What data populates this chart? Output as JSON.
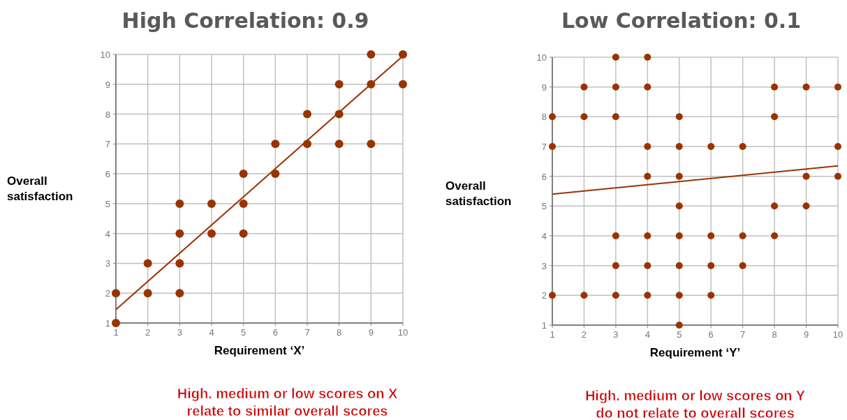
{
  "chart_data": [
    {
      "type": "scatter",
      "title": "High Correlation: 0.9",
      "xlabel": "Requirement ‘X’",
      "ylabel": "Overall satisfaction",
      "annotations": [
        "High. medium or low scores on X relate to similar overall scores"
      ],
      "xlim": [
        1,
        10
      ],
      "ylim": [
        1,
        10
      ],
      "xticks": [
        1,
        2,
        3,
        4,
        5,
        6,
        7,
        8,
        9,
        10
      ],
      "yticks": [
        1,
        2,
        3,
        4,
        5,
        6,
        7,
        8,
        9,
        10
      ],
      "grid": true,
      "series": [
        {
          "marker": "circle",
          "color": "#993300",
          "x": [
            1,
            1,
            2,
            2,
            3,
            3,
            3,
            3,
            4,
            4,
            5,
            5,
            5,
            6,
            6,
            7,
            7,
            8,
            8,
            8,
            9,
            9,
            9,
            10,
            10
          ],
          "values": [
            1,
            2,
            2,
            3,
            2,
            3,
            4,
            5,
            4,
            5,
            4,
            5,
            6,
            6,
            7,
            7,
            8,
            7,
            8,
            9,
            7,
            9,
            10,
            9,
            10
          ]
        },
        {
          "type": "line",
          "marker": "none",
          "color": "#993300",
          "x": [
            1,
            10
          ],
          "values": [
            1.45,
            9.95
          ]
        }
      ]
    },
    {
      "type": "scatter",
      "title": "Low Correlation: 0.1",
      "xlabel": "Requirement ‘Y’",
      "ylabel": "Overall satisfaction",
      "annotations": [
        "High. medium or low scores on Y do not relate to overall scores"
      ],
      "xlim": [
        1,
        10
      ],
      "ylim": [
        1,
        10
      ],
      "xticks": [
        1,
        2,
        3,
        4,
        5,
        6,
        7,
        8,
        9,
        10
      ],
      "yticks": [
        1,
        2,
        3,
        4,
        5,
        6,
        7,
        8,
        9,
        10
      ],
      "grid": true,
      "series": [
        {
          "marker": "circle",
          "color": "#993300",
          "x": [
            1,
            1,
            1,
            2,
            2,
            2,
            3,
            3,
            3,
            3,
            3,
            3,
            4,
            4,
            4,
            4,
            4,
            4,
            4,
            5,
            5,
            5,
            5,
            5,
            5,
            5,
            5,
            6,
            6,
            6,
            6,
            7,
            7,
            7,
            8,
            8,
            8,
            8,
            9,
            9,
            9,
            10,
            10,
            10
          ],
          "values": [
            2,
            7,
            8,
            2,
            8,
            9,
            2,
            3,
            4,
            8,
            9,
            10,
            2,
            3,
            4,
            6,
            7,
            9,
            10,
            1,
            2,
            3,
            4,
            5,
            6,
            7,
            8,
            2,
            3,
            4,
            7,
            3,
            4,
            7,
            4,
            5,
            8,
            9,
            5,
            6,
            9,
            6,
            7,
            9
          ]
        },
        {
          "type": "line",
          "marker": "none",
          "color": "#993300",
          "x": [
            1,
            10
          ],
          "values": [
            5.4,
            6.35
          ]
        }
      ]
    }
  ]
}
